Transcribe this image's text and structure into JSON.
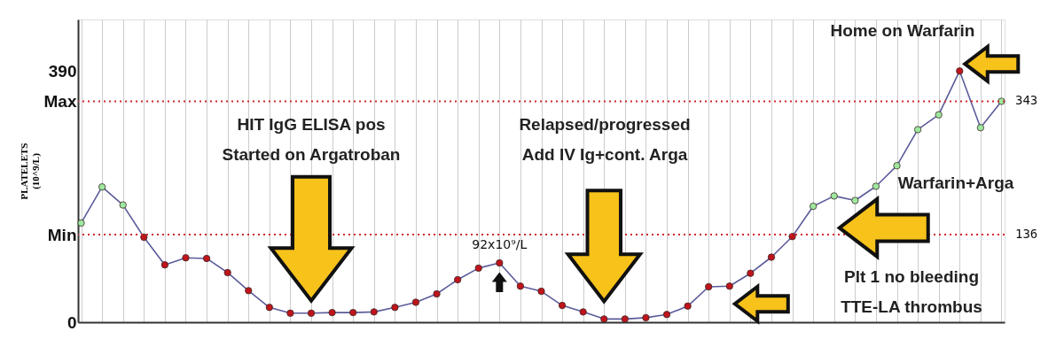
{
  "chart_data": {
    "type": "line",
    "ylabel": "PLATELETS (10^9/L)",
    "categories": [
      null,
      null,
      null,
      null,
      null,
      null,
      null,
      null,
      null,
      null,
      null,
      null,
      null,
      null,
      null,
      null,
      null,
      null,
      null,
      null,
      null,
      null,
      null,
      null,
      null,
      null,
      null,
      null,
      null,
      null,
      null,
      null,
      null,
      null,
      null,
      null,
      null,
      null,
      null,
      null,
      null,
      null,
      null,
      null,
      null
    ],
    "series": [
      {
        "color": "#5b5b9b",
        "values": [
          154,
          210,
          182,
          132,
          89,
          100,
          99,
          77,
          49,
          23,
          14,
          14,
          15,
          15,
          16,
          23,
          31,
          44,
          66,
          84,
          92,
          56,
          48,
          26,
          16,
          5,
          5,
          7,
          12,
          25,
          55,
          56,
          76,
          101,
          133,
          180,
          196,
          189,
          211,
          243,
          299,
          322,
          390,
          302,
          343
        ],
        "colors": [
          "#9ee89e",
          "#9ee89e",
          "#9ee89e",
          "#c0141b",
          "#c0141b",
          "#c0141b",
          "#c0141b",
          "#c0141b",
          "#c0141b",
          "#c0141b",
          "#c0141b",
          "#c0141b",
          "#c0141b",
          "#c0141b",
          "#c0141b",
          "#c0141b",
          "#c0141b",
          "#c0141b",
          "#c0141b",
          "#c0141b",
          "#c0141b",
          "#c0141b",
          "#c0141b",
          "#c0141b",
          "#c0141b",
          "#c0141b",
          "#c0141b",
          "#c0141b",
          "#c0141b",
          "#c0141b",
          "#c0141b",
          "#c0141b",
          "#c0141b",
          "#c0141b",
          "#c0141b",
          "#9ee89e",
          "#9ee89e",
          "#9ee89e",
          "#9ee89e",
          "#9ee89e",
          "#9ee89e",
          "#9ee89e",
          "#c0141b",
          "#9ee89e",
          "#9ee89e"
        ]
      }
    ],
    "ylim": [
      0,
      470
    ],
    "yticks": [
      0,
      {
        "value": 136,
        "label": "Min"
      },
      {
        "value": 343,
        "label": "Max"
      },
      390
    ],
    "ref_lines": [
      {
        "axis": "y",
        "value": 343,
        "label": "343",
        "color": "#d0282e",
        "line_style": "dotted"
      },
      {
        "axis": "y",
        "value": 136,
        "label": "136",
        "color": "#d0282e",
        "line_style": "dotted"
      }
    ],
    "annotations": [
      "HIT IgG ELISA pos\nStarted on Argatroban",
      "Relapsed/progressed\nAdd IV Ig+cont. Arga",
      "Warfarin+Arga",
      "Plt 1 no bleeding\nTTE-LA thrombus",
      "Home on Warfarin",
      {
        "text": "92x10⁹/L",
        "y": 92
      }
    ],
    "grid": "x",
    "tick_labels": "y",
    "marker": "circle",
    "line_style": "solid"
  }
}
